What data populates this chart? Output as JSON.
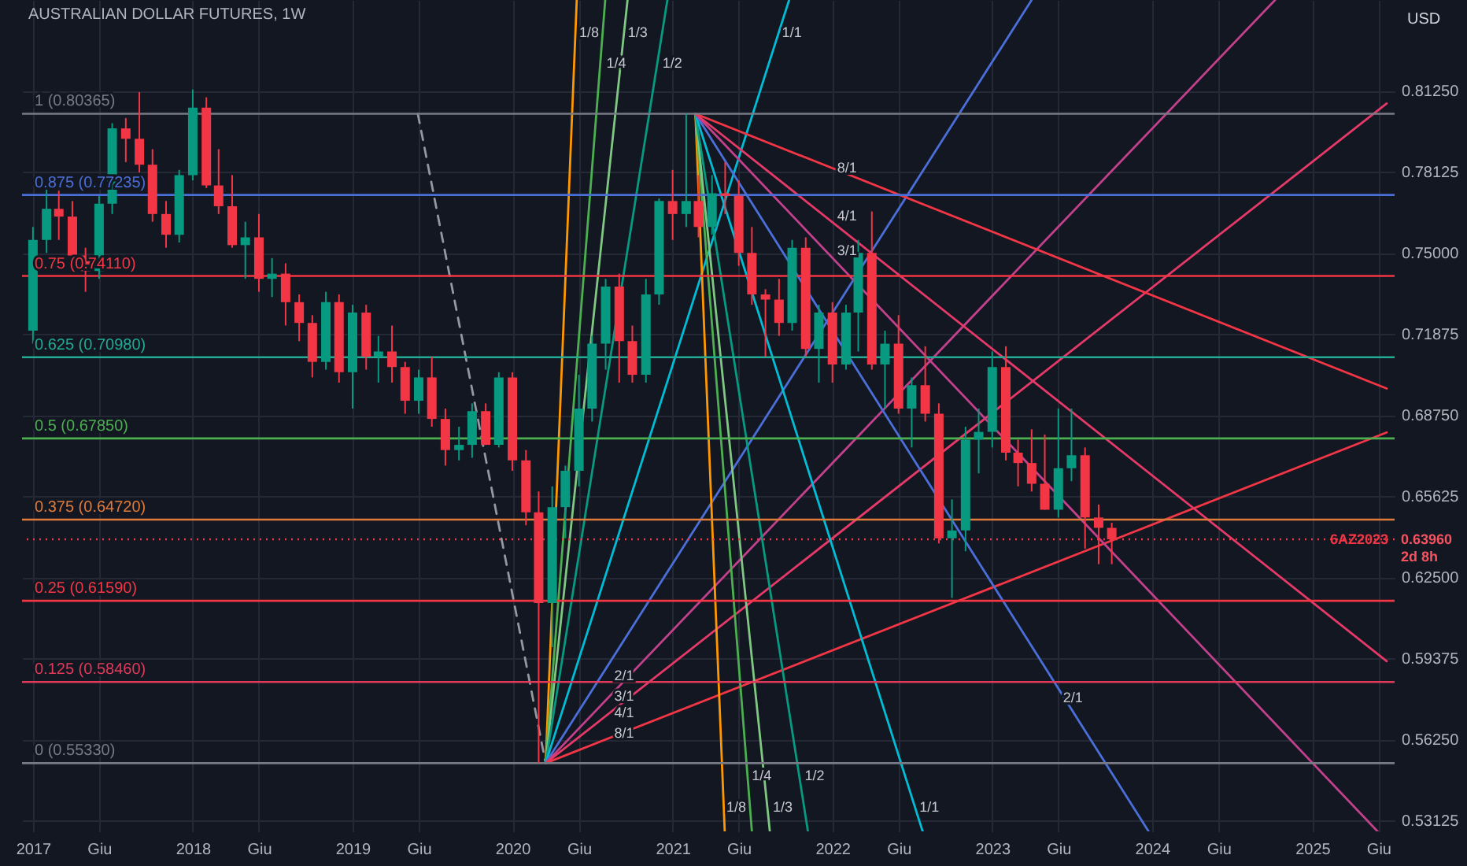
{
  "chart_data": {
    "type": "candlestick",
    "title": "AUSTRALIAN DOLLAR FUTURES, 1W",
    "x": [
      "2017-01",
      "2017-02",
      "2017-03",
      "2017-04",
      "2017-05",
      "2017-06",
      "2017-07",
      "2017-08",
      "2017-09",
      "2017-10",
      "2017-11",
      "2017-12",
      "2018-01",
      "2018-02",
      "2018-03",
      "2018-04",
      "2018-05",
      "2018-06",
      "2018-07",
      "2018-08",
      "2018-09",
      "2018-10",
      "2018-11",
      "2018-12",
      "2019-01",
      "2019-02",
      "2019-03",
      "2019-04",
      "2019-05",
      "2019-06",
      "2019-07",
      "2019-08",
      "2019-09",
      "2019-10",
      "2019-11",
      "2019-12",
      "2020-01",
      "2020-02",
      "2020-03",
      "2020-04",
      "2020-05",
      "2020-06",
      "2020-07",
      "2020-08",
      "2020-09",
      "2020-10",
      "2020-11",
      "2020-12",
      "2021-01",
      "2021-02",
      "2021-03",
      "2021-04",
      "2021-05",
      "2021-06",
      "2021-07",
      "2021-08",
      "2021-09",
      "2021-10",
      "2021-11",
      "2021-12",
      "2022-01",
      "2022-02",
      "2022-03",
      "2022-04",
      "2022-05",
      "2022-06",
      "2022-07",
      "2022-08",
      "2022-09",
      "2022-10",
      "2022-11",
      "2022-12",
      "2023-01",
      "2023-02",
      "2023-03",
      "2023-04",
      "2023-05",
      "2023-06",
      "2023-07",
      "2023-08",
      "2023-09",
      "2023-10"
    ],
    "ohlc": [
      [
        0.72,
        0.76,
        0.715,
        0.755
      ],
      [
        0.755,
        0.775,
        0.75,
        0.767
      ],
      [
        0.767,
        0.774,
        0.755,
        0.764
      ],
      [
        0.764,
        0.77,
        0.745,
        0.749
      ],
      [
        0.749,
        0.752,
        0.735,
        0.743
      ],
      [
        0.743,
        0.772,
        0.74,
        0.769
      ],
      [
        0.769,
        0.8,
        0.765,
        0.798
      ],
      [
        0.798,
        0.802,
        0.785,
        0.794
      ],
      [
        0.794,
        0.812,
        0.781,
        0.784
      ],
      [
        0.784,
        0.79,
        0.762,
        0.765
      ],
      [
        0.765,
        0.77,
        0.752,
        0.757
      ],
      [
        0.757,
        0.782,
        0.754,
        0.78
      ],
      [
        0.78,
        0.813,
        0.778,
        0.806
      ],
      [
        0.806,
        0.81,
        0.775,
        0.776
      ],
      [
        0.776,
        0.79,
        0.765,
        0.768
      ],
      [
        0.768,
        0.78,
        0.752,
        0.753
      ],
      [
        0.753,
        0.762,
        0.74,
        0.756
      ],
      [
        0.756,
        0.765,
        0.735,
        0.74
      ],
      [
        0.74,
        0.748,
        0.733,
        0.742
      ],
      [
        0.742,
        0.746,
        0.722,
        0.731
      ],
      [
        0.731,
        0.734,
        0.716,
        0.723
      ],
      [
        0.723,
        0.726,
        0.702,
        0.708
      ],
      [
        0.708,
        0.735,
        0.705,
        0.731
      ],
      [
        0.731,
        0.734,
        0.7,
        0.704
      ],
      [
        0.704,
        0.73,
        0.69,
        0.727
      ],
      [
        0.727,
        0.73,
        0.705,
        0.71
      ],
      [
        0.71,
        0.718,
        0.7,
        0.712
      ],
      [
        0.712,
        0.722,
        0.7,
        0.706
      ],
      [
        0.706,
        0.708,
        0.688,
        0.693
      ],
      [
        0.693,
        0.705,
        0.688,
        0.702
      ],
      [
        0.702,
        0.71,
        0.683,
        0.686
      ],
      [
        0.686,
        0.69,
        0.668,
        0.674
      ],
      [
        0.674,
        0.683,
        0.67,
        0.676
      ],
      [
        0.676,
        0.692,
        0.671,
        0.689
      ],
      [
        0.689,
        0.692,
        0.676,
        0.676
      ],
      [
        0.676,
        0.704,
        0.675,
        0.702
      ],
      [
        0.702,
        0.704,
        0.666,
        0.67
      ],
      [
        0.67,
        0.674,
        0.645,
        0.65
      ],
      [
        0.65,
        0.658,
        0.5533,
        0.615
      ],
      [
        0.615,
        0.66,
        0.598,
        0.652
      ],
      [
        0.652,
        0.668,
        0.64,
        0.666
      ],
      [
        0.666,
        0.703,
        0.66,
        0.69
      ],
      [
        0.69,
        0.718,
        0.685,
        0.715
      ],
      [
        0.715,
        0.74,
        0.705,
        0.737
      ],
      [
        0.737,
        0.742,
        0.7,
        0.716
      ],
      [
        0.716,
        0.722,
        0.7,
        0.703
      ],
      [
        0.703,
        0.74,
        0.7,
        0.734
      ],
      [
        0.734,
        0.771,
        0.73,
        0.77
      ],
      [
        0.77,
        0.782,
        0.755,
        0.765
      ],
      [
        0.765,
        0.80365,
        0.76,
        0.77
      ],
      [
        0.77,
        0.78,
        0.756,
        0.76
      ],
      [
        0.76,
        0.78,
        0.757,
        0.773
      ],
      [
        0.773,
        0.785,
        0.765,
        0.772
      ],
      [
        0.772,
        0.778,
        0.745,
        0.75
      ],
      [
        0.75,
        0.76,
        0.73,
        0.734
      ],
      [
        0.734,
        0.736,
        0.71,
        0.732
      ],
      [
        0.732,
        0.74,
        0.718,
        0.723
      ],
      [
        0.723,
        0.755,
        0.72,
        0.752
      ],
      [
        0.752,
        0.756,
        0.71,
        0.713
      ],
      [
        0.713,
        0.73,
        0.7,
        0.727
      ],
      [
        0.727,
        0.731,
        0.7,
        0.707
      ],
      [
        0.707,
        0.73,
        0.705,
        0.727
      ],
      [
        0.727,
        0.755,
        0.712,
        0.75
      ],
      [
        0.75,
        0.766,
        0.705,
        0.707
      ],
      [
        0.707,
        0.72,
        0.69,
        0.715
      ],
      [
        0.715,
        0.726,
        0.688,
        0.69
      ],
      [
        0.69,
        0.702,
        0.675,
        0.699
      ],
      [
        0.699,
        0.714,
        0.685,
        0.688
      ],
      [
        0.688,
        0.692,
        0.638,
        0.64
      ],
      [
        0.64,
        0.655,
        0.617,
        0.643
      ],
      [
        0.643,
        0.683,
        0.635,
        0.678
      ],
      [
        0.678,
        0.69,
        0.665,
        0.681
      ],
      [
        0.681,
        0.712,
        0.675,
        0.706
      ],
      [
        0.706,
        0.714,
        0.67,
        0.673
      ],
      [
        0.673,
        0.678,
        0.66,
        0.669
      ],
      [
        0.669,
        0.682,
        0.658,
        0.661
      ],
      [
        0.661,
        0.68,
        0.651,
        0.651
      ],
      [
        0.651,
        0.69,
        0.648,
        0.667
      ],
      [
        0.667,
        0.69,
        0.662,
        0.672
      ],
      [
        0.672,
        0.675,
        0.636,
        0.648
      ],
      [
        0.648,
        0.653,
        0.63,
        0.644
      ],
      [
        0.644,
        0.646,
        0.63,
        0.6396
      ]
    ],
    "colors": [
      "#089981",
      "#089981",
      "#f23645",
      "#f23645",
      "#f23645",
      "#089981",
      "#089981",
      "#f23645",
      "#f23645",
      "#f23645",
      "#f23645",
      "#089981",
      "#089981",
      "#f23645",
      "#f23645",
      "#f23645",
      "#089981",
      "#f23645",
      "#089981",
      "#f23645",
      "#f23645",
      "#f23645",
      "#089981",
      "#f23645",
      "#089981",
      "#f23645",
      "#089981",
      "#f23645",
      "#f23645",
      "#089981",
      "#f23645",
      "#f23645",
      "#089981",
      "#089981",
      "#f23645",
      "#089981",
      "#f23645",
      "#f23645",
      "#f23645",
      "#089981",
      "#089981",
      "#089981",
      "#089981",
      "#089981",
      "#f23645",
      "#f23645",
      "#089981",
      "#089981",
      "#f23645",
      "#089981",
      "#f23645",
      "#089981",
      "#f23645",
      "#f23645",
      "#f23645",
      "#f23645",
      "#f23645",
      "#089981",
      "#f23645",
      "#089981",
      "#f23645",
      "#089981",
      "#089981",
      "#f23645",
      "#089981",
      "#f23645",
      "#089981",
      "#f23645",
      "#f23645",
      "#089981",
      "#089981",
      "#089981",
      "#089981",
      "#f23645",
      "#f23645",
      "#f23645",
      "#f23645",
      "#089981",
      "#089981",
      "#f23645",
      "#f23645",
      "#f23645"
    ],
    "series": [
      {
        "type": "line",
        "color": "#9598a1",
        "line_style": "dashed",
        "x": [
          "2019-05-30",
          "2020-03-17"
        ],
        "values": [
          0.80365,
          0.5533
        ]
      },
      {
        "type": "line",
        "color": "#ff9800",
        "x": [
          "2020-03-17",
          "2020-05-27"
        ],
        "values": [
          0.5533,
          0.8475
        ]
      },
      {
        "type": "line",
        "color": "#4caf50",
        "x": [
          "2020-03-17",
          "2020-07-31"
        ],
        "values": [
          0.5533,
          0.8475
        ]
      },
      {
        "type": "line",
        "color": "#81c784",
        "x": [
          "2020-03-17",
          "2020-09-20"
        ],
        "values": [
          0.5533,
          0.8475
        ]
      },
      {
        "type": "line",
        "color": "#089981",
        "x": [
          "2020-03-17",
          "2020-12-20"
        ],
        "values": [
          0.5533,
          0.8475
        ]
      },
      {
        "type": "line",
        "color": "#00bcd4",
        "x": [
          "2020-03-17",
          "2021-09-24"
        ],
        "values": [
          0.5533,
          0.8475
        ]
      },
      {
        "type": "line",
        "color": "#4a6fd9",
        "x": [
          "2020-03-17",
          "2023-04-01"
        ],
        "values": [
          0.5533,
          0.8475
        ]
      },
      {
        "type": "line",
        "color": "#c2408c",
        "x": [
          "2020-03-17",
          "2024-10-08"
        ],
        "values": [
          0.5533,
          0.8475
        ]
      },
      {
        "type": "line",
        "color": "#e53968",
        "x": [
          "2020-03-17",
          "2025-06-20"
        ],
        "values": [
          0.5533,
          0.8076
        ]
      },
      {
        "type": "line",
        "color": "#f23645",
        "x": [
          "2020-03-17",
          "2025-06-20"
        ],
        "values": [
          0.5533,
          0.6808
        ]
      },
      {
        "type": "line",
        "color": "#ff9800",
        "x": [
          "2021-02-22",
          "2021-04-30"
        ],
        "values": [
          0.80365,
          0.527
        ]
      },
      {
        "type": "line",
        "color": "#4caf50",
        "x": [
          "2021-02-22",
          "2021-07-01"
        ],
        "values": [
          0.80365,
          0.527
        ]
      },
      {
        "type": "line",
        "color": "#81c784",
        "x": [
          "2021-02-22",
          "2021-08-11"
        ],
        "values": [
          0.80365,
          0.527
        ]
      },
      {
        "type": "line",
        "color": "#089981",
        "x": [
          "2021-02-22",
          "2021-11-06"
        ],
        "values": [
          0.80365,
          0.527
        ]
      },
      {
        "type": "line",
        "color": "#00bcd4",
        "x": [
          "2021-02-22",
          "2022-07-26"
        ],
        "values": [
          0.80365,
          0.527
        ]
      },
      {
        "type": "line",
        "color": "#4a6fd9",
        "x": [
          "2021-02-22",
          "2023-12-24"
        ],
        "values": [
          0.80365,
          0.527
        ]
      },
      {
        "type": "line",
        "color": "#c2408c",
        "x": [
          "2021-02-22",
          "2025-05-30"
        ],
        "values": [
          0.80365,
          0.527
        ]
      },
      {
        "type": "line",
        "color": "#e53968",
        "x": [
          "2021-02-22",
          "2025-06-20"
        ],
        "values": [
          0.80365,
          0.5926
        ]
      },
      {
        "type": "line",
        "color": "#f23645",
        "x": [
          "2021-02-22",
          "2025-06-20"
        ],
        "values": [
          0.80365,
          0.6977
        ]
      }
    ],
    "ref_lines": [
      {
        "axis": "y",
        "value": 0.80365,
        "label": "1 (0.80365)",
        "color": "#787b86"
      },
      {
        "axis": "y",
        "value": 0.77235,
        "label": "0.875 (0.77235)",
        "color": "#4a6fd9"
      },
      {
        "axis": "y",
        "value": 0.7411,
        "label": "0.75 (0.74110)",
        "color": "#f23645"
      },
      {
        "axis": "y",
        "value": 0.7098,
        "label": "0.625 (0.70980)",
        "color": "#22ab94"
      },
      {
        "axis": "y",
        "value": 0.6785,
        "label": "0.5 (0.67850)",
        "color": "#4caf50"
      },
      {
        "axis": "y",
        "value": 0.6472,
        "label": "0.375 (0.64720)",
        "color": "#e07b39"
      },
      {
        "axis": "y",
        "value": 0.6159,
        "label": "0.25 (0.61590)",
        "color": "#f23645"
      },
      {
        "axis": "y",
        "value": 0.5846,
        "label": "0.125 (0.58460)",
        "color": "#e03a5a"
      },
      {
        "axis": "y",
        "value": 0.5533,
        "label": "0 (0.55330)",
        "color": "#787b86"
      },
      {
        "axis": "y",
        "value": 0.6396,
        "color": "#f23645",
        "line_style": "dotted"
      }
    ],
    "annotations": [
      "USD",
      {
        "text": "6AZ2023",
        "y": 0.6396
      },
      "0.63960",
      "2d 8h",
      {
        "text": "1/8",
        "x": "2020-05-22",
        "y": 0.835
      },
      {
        "text": "1/4",
        "x": "2020-07-23",
        "y": 0.8233
      },
      {
        "text": "1/3",
        "x": "2020-09-10",
        "y": 0.835
      },
      {
        "text": "1/2",
        "x": "2020-11-28",
        "y": 0.8233
      },
      {
        "text": "1/1",
        "x": "2021-08-28",
        "y": 0.835
      },
      {
        "text": "2/1",
        "x": "2020-08-10",
        "y": 0.5872
      },
      {
        "text": "3/1",
        "x": "2020-08-10",
        "y": 0.5793
      },
      {
        "text": "4/1",
        "x": "2020-08-10",
        "y": 0.5727
      },
      {
        "text": "8/1",
        "x": "2020-08-10",
        "y": 0.5648
      },
      {
        "text": "8/1",
        "x": "2022-01-01",
        "y": 0.7829
      },
      {
        "text": "4/1",
        "x": "2022-01-01",
        "y": 0.7642
      },
      {
        "text": "3/1",
        "x": "2022-01-01",
        "y": 0.7509
      },
      {
        "text": "2/1",
        "x": "2023-06-01",
        "y": 0.5787
      },
      {
        "text": "1/8",
        "x": "2021-04-23",
        "y": 0.5365
      },
      {
        "text": "1/4",
        "x": "2021-06-20",
        "y": 0.5485
      },
      {
        "text": "1/3",
        "x": "2021-08-07",
        "y": 0.5365
      },
      {
        "text": "1/2",
        "x": "2021-10-19",
        "y": 0.5485
      },
      {
        "text": "1/1",
        "x": "2022-07-08",
        "y": 0.5365
      }
    ],
    "xlim": [
      "2016-12-25",
      "2025-06-20"
    ],
    "xticks": [
      "2017",
      {
        "value": "2017-06",
        "label": "Giu"
      },
      "2018",
      {
        "value": "2018-06",
        "label": "Giu"
      },
      "2019",
      {
        "value": "2019-06",
        "label": "Giu"
      },
      "2020",
      {
        "value": "2020-06",
        "label": "Giu"
      },
      "2021",
      {
        "value": "2021-06",
        "label": "Giu"
      },
      "2022",
      {
        "value": "2022-06",
        "label": "Giu"
      },
      "2023",
      {
        "value": "2023-06",
        "label": "Giu"
      },
      "2024",
      {
        "value": "2024-06",
        "label": "Giu"
      },
      "2025",
      {
        "value": "2025-06",
        "label": "Giu"
      }
    ],
    "ylim": [
      0.527,
      0.8475
    ],
    "yticks": [
      {
        "value": 0.53125,
        "label": "0.53125"
      },
      {
        "value": 0.5625,
        "label": "0.56250"
      },
      {
        "value": 0.59375,
        "label": "0.59375"
      },
      {
        "value": 0.625,
        "label": "0.62500"
      },
      {
        "value": 0.65625,
        "label": "0.65625"
      },
      {
        "value": 0.6875,
        "label": "0.68750"
      },
      {
        "value": 0.71875,
        "label": "0.71875"
      },
      {
        "value": 0.75,
        "label": "0.75000"
      },
      {
        "value": 0.78125,
        "label": "0.78125"
      },
      {
        "value": 0.8125,
        "label": "0.81250"
      }
    ],
    "grid": true
  }
}
